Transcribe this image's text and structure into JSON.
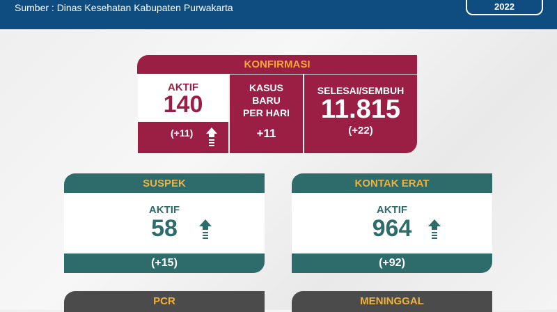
{
  "header": {
    "source": "Sumber : Dinas Kesehatan Kabupaten Purwakarta",
    "year": "2022"
  },
  "konfirmasi": {
    "title": "KONFIRMASI",
    "aktif_label": "AKTIF",
    "aktif_value": "140",
    "aktif_change": "(+11)",
    "kasus_label_1": "KASUS",
    "kasus_label_2": "BARU",
    "kasus_label_3": "PER HARI",
    "kasus_value": "+11",
    "selesai_label": "SELESAI/SEMBUH",
    "selesai_value": "11.815",
    "selesai_change": "(+22)",
    "trend": "up-arrow-icon"
  },
  "suspek": {
    "title": "SUSPEK",
    "label": "AKTIF",
    "value": "58",
    "change": "(+15)",
    "trend": "up-arrow-icon"
  },
  "kontak_erat": {
    "title": "KONTAK ERAT",
    "label": "AKTIF",
    "value": "964",
    "change": "(+92)",
    "trend": "up-arrow-icon"
  },
  "pcr": {
    "title": "PCR"
  },
  "meninggal": {
    "title": "MENINGGAL"
  },
  "colors": {
    "header": "#0f4c80",
    "konfirmasi": "#9b1f45",
    "teal": "#2e6b6b",
    "gold": "#f0b23c",
    "dark": "#4b4b4b"
  }
}
